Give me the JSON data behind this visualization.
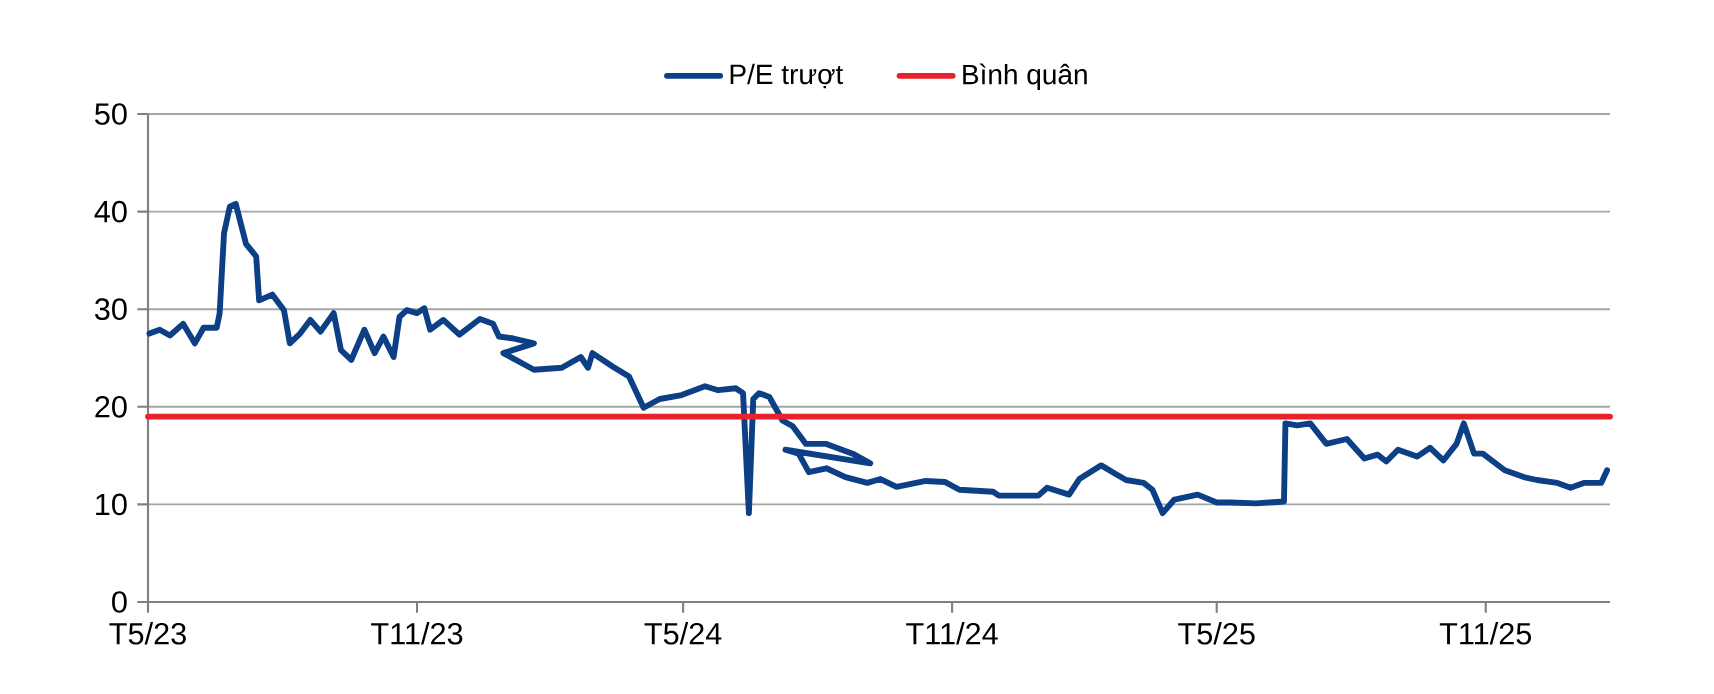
{
  "chart_data": {
    "type": "line",
    "xlim": [
      "2023-05-01",
      "2026-01-25"
    ],
    "ylim": [
      0,
      50
    ],
    "xticks": [
      {
        "value": "2023-05-01",
        "label": "T5/23"
      },
      {
        "value": "2023-11-01",
        "label": "T11/23"
      },
      {
        "value": "2024-05-01",
        "label": "T5/24"
      },
      {
        "value": "2024-11-01",
        "label": "T11/24"
      },
      {
        "value": "2025-05-01",
        "label": "T5/25"
      },
      {
        "value": "2025-11-01",
        "label": "T11/25"
      }
    ],
    "yticks": [
      0,
      10,
      20,
      30,
      40,
      50
    ],
    "grid": "y",
    "legend": "top",
    "marker": "none",
    "line_style": "solid",
    "series": [
      {
        "name": "P/E trượt",
        "color": "#0d3f86",
        "x": [
          "2023-05-02",
          "2023-05-09",
          "2023-05-16",
          "2023-05-25",
          "2023-06-02",
          "2023-06-08",
          "2023-06-17",
          "2023-06-19",
          "2023-06-22",
          "2023-06-26",
          "2023-06-30",
          "2023-07-07",
          "2023-07-14",
          "2023-07-16",
          "2023-07-25",
          "2023-08-02",
          "2023-08-06",
          "2023-08-13",
          "2023-08-20",
          "2023-08-27",
          "2023-09-05",
          "2023-09-10",
          "2023-09-17",
          "2023-09-26",
          "2023-10-03",
          "2023-10-09",
          "2023-10-16",
          "2023-10-20",
          "2023-10-25",
          "2023-11-01",
          "2023-11-06",
          "2023-11-10",
          "2023-11-19",
          "2023-11-30",
          "2023-12-14",
          "2023-12-23",
          "2023-12-27",
          "2024-01-06",
          "2024-01-20",
          "2023-12-30",
          "2024-01-20",
          "2024-02-08",
          "2024-02-21",
          "2024-02-26",
          "2024-02-29",
          "2024-03-14",
          "2024-03-25",
          "2024-04-04",
          "2024-04-15",
          "2024-04-30",
          "2024-05-16",
          "2024-05-25",
          "2024-06-06",
          "2024-06-11",
          "2024-06-15",
          "2024-06-18",
          "2024-06-22",
          "2024-06-29",
          "2024-07-08",
          "2024-07-15",
          "2024-07-24",
          "2024-08-07",
          "2024-08-25",
          "2024-09-06",
          "2024-07-10",
          "2024-07-19",
          "2024-07-26",
          "2024-08-07",
          "2024-08-20",
          "2024-09-04",
          "2024-09-13",
          "2024-09-24",
          "2024-10-14",
          "2024-10-27",
          "2024-11-06",
          "2024-11-29",
          "2024-12-03",
          "2024-12-30",
          "2025-01-05",
          "2025-01-20",
          "2025-01-27",
          "2025-02-11",
          "2025-02-20",
          "2025-02-28",
          "2025-03-12",
          "2025-03-18",
          "2025-03-25",
          "2025-04-02",
          "2025-04-18",
          "2025-05-01",
          "2025-05-10",
          "2025-05-28",
          "2025-06-16",
          "2025-06-17",
          "2025-06-25",
          "2025-07-04",
          "2025-07-15",
          "2025-07-29",
          "2025-08-10",
          "2025-08-19",
          "2025-08-25",
          "2025-09-02",
          "2025-09-15",
          "2025-09-24",
          "2025-10-03",
          "2025-10-12",
          "2025-10-17",
          "2025-10-24",
          "2025-10-30",
          "2025-11-14",
          "2025-11-27",
          "2025-12-06",
          "2025-12-20",
          "2025-12-29",
          "2026-01-07",
          "2026-01-19",
          "2026-01-23"
        ],
        "values": [
          27.5,
          27.9,
          27.3,
          28.5,
          26.5,
          28.1,
          28.1,
          29.6,
          37.8,
          40.5,
          40.8,
          36.7,
          35.4,
          30.9,
          31.5,
          29.9,
          26.5,
          27.5,
          28.9,
          27.7,
          29.6,
          25.8,
          24.8,
          27.9,
          25.5,
          27.2,
          25.1,
          29.2,
          29.9,
          29.6,
          30.1,
          27.9,
          28.9,
          27.4,
          29.0,
          28.5,
          27.2,
          27.0,
          26.5,
          25.5,
          23.8,
          24.0,
          25.1,
          24.0,
          25.5,
          24.1,
          23.1,
          19.9,
          20.8,
          21.2,
          22.1,
          21.7,
          21.9,
          21.4,
          9.1,
          20.8,
          21.4,
          21.0,
          18.6,
          18.0,
          16.2,
          16.2,
          15.2,
          14.2,
          15.6,
          15.2,
          13.3,
          13.7,
          12.8,
          12.2,
          12.6,
          11.8,
          12.4,
          12.3,
          11.5,
          11.3,
          10.9,
          10.9,
          11.7,
          11.0,
          12.6,
          14.0,
          13.2,
          12.5,
          12.2,
          11.5,
          9.1,
          10.5,
          11.0,
          10.2,
          10.2,
          10.1,
          10.3,
          18.3,
          18.1,
          18.3,
          16.2,
          16.7,
          14.7,
          15.1,
          14.4,
          15.6,
          14.9,
          15.8,
          14.5,
          16.2,
          18.3,
          15.2,
          15.2,
          13.5,
          12.8,
          12.5,
          12.2,
          11.7,
          12.2,
          12.2,
          13.5
        ]
      },
      {
        "name": "Bình quân",
        "color": "#e8222b",
        "x": [
          "2023-05-01",
          "2026-01-25"
        ],
        "values": [
          19,
          19
        ]
      }
    ]
  }
}
